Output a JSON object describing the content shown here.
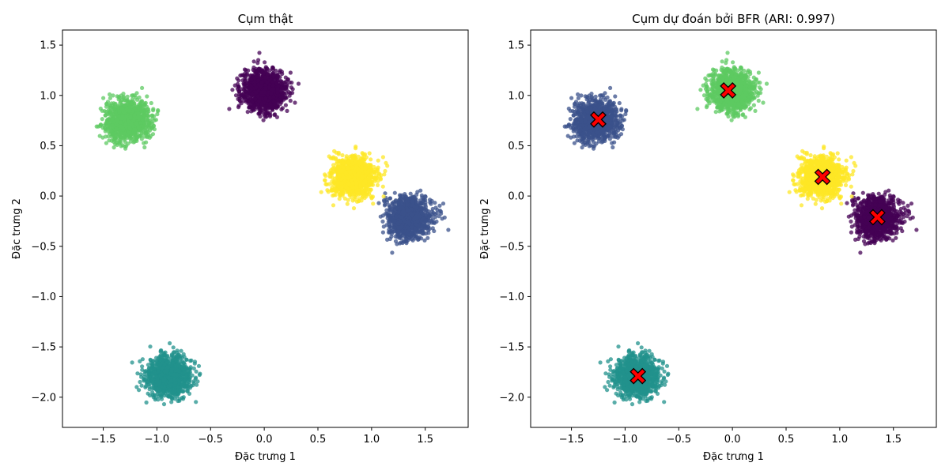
{
  "chart_data": [
    {
      "type": "scatter",
      "title": "Cụm thật",
      "xlabel": "Đặc trưng 1",
      "ylabel": "Đặc trưng 2",
      "xlim": [
        -1.88,
        1.9
      ],
      "ylim": [
        -2.3,
        1.65
      ],
      "xticks": [
        -1.5,
        -1.0,
        -0.5,
        0.0,
        0.5,
        1.0,
        1.5
      ],
      "yticks": [
        -2.0,
        -1.5,
        -1.0,
        -0.5,
        0.0,
        0.5,
        1.0,
        1.5
      ],
      "xtick_labels": [
        "−1.5",
        "−1.0",
        "−0.5",
        "0.0",
        "0.5",
        "1.0",
        "1.5"
      ],
      "ytick_labels": [
        "−2.0",
        "−1.5",
        "−1.0",
        "−0.5",
        "0.0",
        "0.5",
        "1.0",
        "1.5"
      ],
      "grid": false,
      "colormap": "viridis",
      "clusters": [
        {
          "center": [
            0.0,
            1.05
          ],
          "spread": 0.1,
          "color": "#440154"
        },
        {
          "center": [
            1.35,
            -0.21
          ],
          "spread": 0.1,
          "color": "#3b528b"
        },
        {
          "center": [
            -0.89,
            -1.79
          ],
          "spread": 0.1,
          "color": "#21918c"
        },
        {
          "center": [
            -1.27,
            0.75
          ],
          "spread": 0.1,
          "color": "#5ec962"
        },
        {
          "center": [
            0.83,
            0.19
          ],
          "spread": 0.1,
          "color": "#fde725"
        }
      ]
    },
    {
      "type": "scatter",
      "title": "Cụm dự đoán bởi BFR (ARI: 0.997)",
      "xlabel": "Đặc trưng 1",
      "ylabel": "Đặc trưng 2",
      "xlim": [
        -1.88,
        1.9
      ],
      "ylim": [
        -2.3,
        1.65
      ],
      "xticks": [
        -1.5,
        -1.0,
        -0.5,
        0.0,
        0.5,
        1.0,
        1.5
      ],
      "yticks": [
        -2.0,
        -1.5,
        -1.0,
        -0.5,
        0.0,
        0.5,
        1.0,
        1.5
      ],
      "xtick_labels": [
        "−1.5",
        "−1.0",
        "−0.5",
        "0.0",
        "0.5",
        "1.0",
        "1.5"
      ],
      "ytick_labels": [
        "−2.0",
        "−1.5",
        "−1.0",
        "−0.5",
        "0.0",
        "0.5",
        "1.0",
        "1.5"
      ],
      "grid": false,
      "colormap": "viridis",
      "clusters": [
        {
          "center": [
            0.0,
            1.05
          ],
          "spread": 0.1,
          "color": "#5ec962"
        },
        {
          "center": [
            1.35,
            -0.21
          ],
          "spread": 0.1,
          "color": "#440154"
        },
        {
          "center": [
            -0.89,
            -1.79
          ],
          "spread": 0.1,
          "color": "#21918c"
        },
        {
          "center": [
            -1.27,
            0.75
          ],
          "spread": 0.1,
          "color": "#3b528b"
        },
        {
          "center": [
            0.83,
            0.19
          ],
          "spread": 0.1,
          "color": "#fde725"
        }
      ],
      "centroids": [
        {
          "x": -0.04,
          "y": 1.05
        },
        {
          "x": 1.35,
          "y": -0.21
        },
        {
          "x": -0.88,
          "y": -1.79
        },
        {
          "x": -1.25,
          "y": 0.76
        },
        {
          "x": 0.84,
          "y": 0.19
        }
      ],
      "centroid_color": "#ff0000",
      "centroid_marker": "X"
    }
  ]
}
